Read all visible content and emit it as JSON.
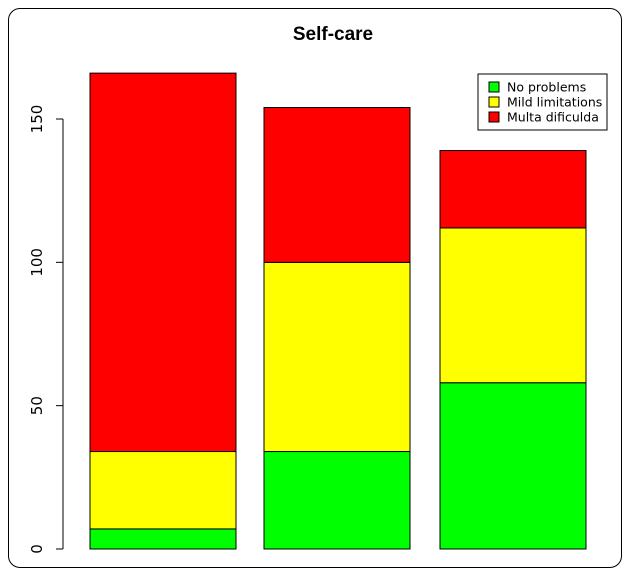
{
  "chart_data": {
    "type": "bar",
    "stacked": true,
    "title": "Self-care",
    "xlabel": "",
    "ylabel": "",
    "categories": [
      "",
      "",
      ""
    ],
    "ylim": [
      0,
      170
    ],
    "yticks": [
      "0",
      "50",
      "100",
      "150"
    ],
    "series": [
      {
        "name": "No problems",
        "color": "#00ff00",
        "values": [
          7,
          34,
          58
        ]
      },
      {
        "name": "Mild limitations",
        "color": "#ffff00",
        "values": [
          27,
          66,
          54
        ]
      },
      {
        "name": "Multa dificulda",
        "color": "#ff0000",
        "values": [
          132,
          54,
          27
        ]
      }
    ],
    "legend_position": "top-right",
    "grid": false
  }
}
